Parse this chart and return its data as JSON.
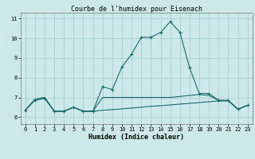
{
  "title": "Courbe de l'humidex pour Eisenach",
  "xlabel": "Humidex (Indice chaleur)",
  "bg_color": "#cce8e8",
  "grid_color": "#aad0d0",
  "line_color": "#1a6b6b",
  "x_ticks": [
    0,
    1,
    2,
    3,
    4,
    5,
    6,
    7,
    8,
    9,
    10,
    11,
    12,
    13,
    14,
    15,
    16,
    17,
    18,
    19,
    20,
    21,
    22,
    23
  ],
  "y_ticks": [
    6,
    7,
    8,
    9,
    10,
    11
  ],
  "xlim": [
    -0.5,
    23.5
  ],
  "ylim": [
    5.65,
    11.3
  ],
  "line1_x": [
    0,
    1,
    2,
    3,
    4,
    5,
    6,
    7,
    8,
    9,
    10,
    11,
    12,
    13,
    14,
    15,
    16,
    17,
    18,
    19,
    20,
    21,
    22,
    23
  ],
  "line1_y": [
    6.35,
    6.85,
    6.95,
    6.3,
    6.3,
    6.5,
    6.3,
    6.3,
    7.55,
    7.4,
    8.55,
    9.2,
    10.05,
    10.05,
    10.3,
    10.85,
    10.3,
    8.5,
    7.2,
    7.2,
    6.85,
    6.85,
    6.4,
    6.6
  ],
  "line2_x": [
    0,
    1,
    2,
    3,
    4,
    5,
    6,
    7,
    8,
    9,
    10,
    11,
    12,
    13,
    14,
    15,
    16,
    17,
    18,
    19,
    20,
    21,
    22,
    23
  ],
  "line2_y": [
    6.35,
    6.9,
    7.0,
    6.3,
    6.3,
    6.5,
    6.3,
    6.3,
    7.0,
    7.0,
    7.0,
    7.0,
    7.0,
    7.0,
    7.0,
    7.0,
    7.05,
    7.1,
    7.15,
    7.1,
    6.85,
    6.85,
    6.4,
    6.6
  ],
  "line3_x": [
    0,
    1,
    2,
    3,
    4,
    5,
    6,
    7,
    8,
    9,
    10,
    11,
    12,
    13,
    14,
    15,
    16,
    17,
    18,
    19,
    20,
    21,
    22,
    23
  ],
  "line3_y": [
    6.35,
    6.9,
    7.0,
    6.3,
    6.3,
    6.5,
    6.3,
    6.3,
    6.35,
    6.38,
    6.42,
    6.46,
    6.5,
    6.55,
    6.58,
    6.62,
    6.66,
    6.7,
    6.74,
    6.78,
    6.82,
    6.82,
    6.4,
    6.6
  ],
  "title_fontsize": 6,
  "xlabel_fontsize": 6,
  "tick_fontsize": 5
}
